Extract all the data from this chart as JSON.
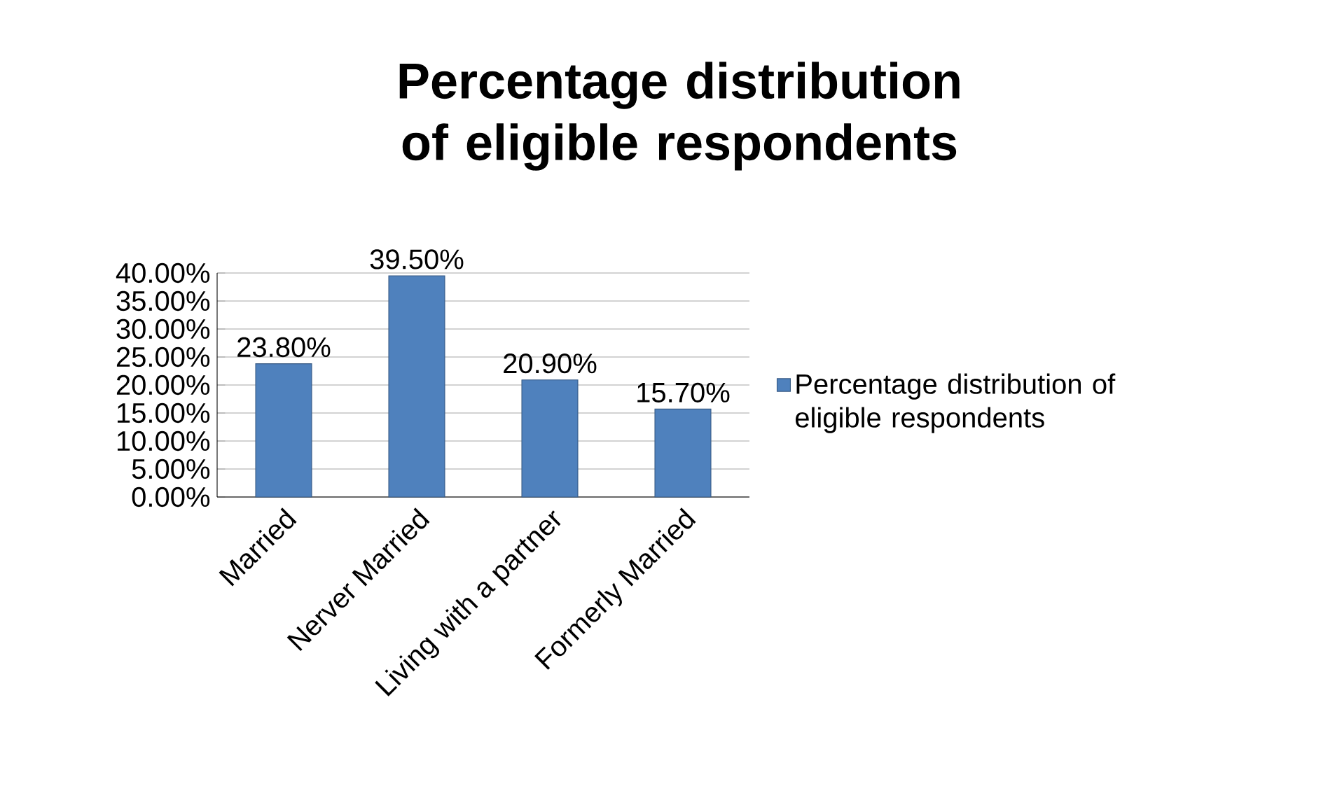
{
  "chart_data": {
    "type": "bar",
    "title": "Percentage distribution of eligible respondents",
    "categories": [
      "Married",
      "Nerver Married",
      "Living with a partner",
      "Formerly Married"
    ],
    "series": [
      {
        "name": "Percentage distribution of eligible respondents",
        "color": "#4f81bd",
        "values": [
          23.8,
          39.5,
          20.9,
          15.7
        ],
        "value_labels": [
          "23.80%",
          "39.50%",
          "20.90%",
          "15.70%"
        ]
      }
    ],
    "ylim": [
      0,
      40
    ],
    "yticks": [
      {
        "value": 0,
        "label": "0.00%"
      },
      {
        "value": 5,
        "label": "5.00%"
      },
      {
        "value": 10,
        "label": "10.00%"
      },
      {
        "value": 15,
        "label": "15.00%"
      },
      {
        "value": 20,
        "label": "20.00%"
      },
      {
        "value": 25,
        "label": "25.00%"
      },
      {
        "value": 30,
        "label": "30.00%"
      },
      {
        "value": 35,
        "label": "35.00%"
      },
      {
        "value": 40,
        "label": "40.00%"
      }
    ],
    "grid": "y",
    "legend": "right"
  }
}
